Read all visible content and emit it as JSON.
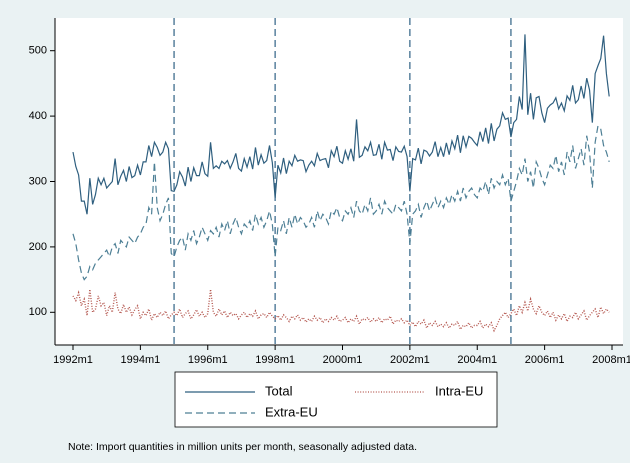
{
  "chart_data": {
    "type": "line",
    "note": "Note: Import quantities in million units per month, seasonally adjusted data.",
    "x": [
      "1992m1",
      "1992m2",
      "1992m3",
      "1992m4",
      "1992m5",
      "1992m6",
      "1992m7",
      "1992m8",
      "1992m9",
      "1992m10",
      "1992m11",
      "1992m12",
      "1993m1",
      "1993m2",
      "1993m3",
      "1993m4",
      "1993m5",
      "1993m6",
      "1993m7",
      "1993m8",
      "1993m9",
      "1993m10",
      "1993m11",
      "1993m12",
      "1994m1",
      "1994m2",
      "1994m3",
      "1994m4",
      "1994m5",
      "1994m6",
      "1994m7",
      "1994m8",
      "1994m9",
      "1994m10",
      "1994m11",
      "1994m12",
      "1995m1",
      "1995m2",
      "1995m3",
      "1995m4",
      "1995m5",
      "1995m6",
      "1995m7",
      "1995m8",
      "1995m9",
      "1995m10",
      "1995m11",
      "1995m12",
      "1996m1",
      "1996m2",
      "1996m3",
      "1996m4",
      "1996m5",
      "1996m6",
      "1996m7",
      "1996m8",
      "1996m9",
      "1996m10",
      "1996m11",
      "1996m12",
      "1997m1",
      "1997m2",
      "1997m3",
      "1997m4",
      "1997m5",
      "1997m6",
      "1997m7",
      "1997m8",
      "1997m9",
      "1997m10",
      "1997m11",
      "1997m12",
      "1998m1",
      "1998m2",
      "1998m3",
      "1998m4",
      "1998m5",
      "1998m6",
      "1998m7",
      "1998m8",
      "1998m9",
      "1998m10",
      "1998m11",
      "1998m12",
      "1999m1",
      "1999m2",
      "1999m3",
      "1999m4",
      "1999m5",
      "1999m6",
      "1999m7",
      "1999m8",
      "1999m9",
      "1999m10",
      "1999m11",
      "1999m12",
      "2000m1",
      "2000m2",
      "2000m3",
      "2000m4",
      "2000m5",
      "2000m6",
      "2000m7",
      "2000m8",
      "2000m9",
      "2000m10",
      "2000m11",
      "2000m12",
      "2001m1",
      "2001m2",
      "2001m3",
      "2001m4",
      "2001m5",
      "2001m6",
      "2001m7",
      "2001m8",
      "2001m9",
      "2001m10",
      "2001m11",
      "2001m12",
      "2002m1",
      "2002m2",
      "2002m3",
      "2002m4",
      "2002m5",
      "2002m6",
      "2002m7",
      "2002m8",
      "2002m9",
      "2002m10",
      "2002m11",
      "2002m12",
      "2003m1",
      "2003m2",
      "2003m3",
      "2003m4",
      "2003m5",
      "2003m6",
      "2003m7",
      "2003m8",
      "2003m9",
      "2003m10",
      "2003m11",
      "2003m12",
      "2004m1",
      "2004m2",
      "2004m3",
      "2004m4",
      "2004m5",
      "2004m6",
      "2004m7",
      "2004m8",
      "2004m9",
      "2004m10",
      "2004m11",
      "2004m12",
      "2005m1",
      "2005m2",
      "2005m3",
      "2005m4",
      "2005m5",
      "2005m6",
      "2005m7",
      "2005m8",
      "2005m9",
      "2005m10",
      "2005m11",
      "2005m12",
      "2006m1",
      "2006m2",
      "2006m3",
      "2006m4",
      "2006m5",
      "2006m6",
      "2006m7",
      "2006m8",
      "2006m9",
      "2006m10",
      "2006m11",
      "2006m12",
      "2007m1",
      "2007m2",
      "2007m3",
      "2007m4",
      "2007m5",
      "2007m6",
      "2007m7",
      "2007m8",
      "2007m9",
      "2007m10",
      "2007m11",
      "2007m12"
    ],
    "series": [
      {
        "name": "Total",
        "color": "#2f5f7f",
        "style": "solid",
        "values": [
          345,
          323,
          310,
          270,
          270,
          250,
          305,
          265,
          280,
          305,
          295,
          305,
          290,
          295,
          300,
          335,
          295,
          308,
          317,
          300,
          323,
          306,
          309,
          325,
          310,
          330,
          330,
          355,
          338,
          360,
          352,
          340,
          345,
          360,
          350,
          286,
          285,
          295,
          315,
          307,
          293,
          322,
          300,
          321,
          309,
          309,
          330,
          312,
          308,
          360,
          320,
          324,
          320,
          331,
          327,
          332,
          320,
          330,
          343,
          320,
          316,
          335,
          322,
          338,
          319,
          352,
          325,
          341,
          328,
          332,
          355,
          329,
          275,
          325,
          313,
          336,
          312,
          331,
          324,
          340,
          331,
          333,
          332,
          315,
          325,
          331,
          324,
          343,
          332,
          334,
          335,
          321,
          347,
          338,
          354,
          331,
          328,
          347,
          334,
          350,
          331,
          395,
          337,
          340,
          353,
          347,
          360,
          340,
          341,
          357,
          334,
          360,
          348,
          349,
          332,
          353,
          346,
          345,
          354,
          338,
          285,
          335,
          333,
          351,
          327,
          348,
          346,
          339,
          345,
          361,
          338,
          352,
          338,
          359,
          341,
          362,
          350,
          371,
          344,
          370,
          353,
          369,
          366,
          360,
          355,
          376,
          361,
          382,
          358,
          389,
          362,
          380,
          385,
          405,
          395,
          397,
          368,
          390,
          395,
          430,
          410,
          525,
          402,
          435,
          395,
          428,
          430,
          405,
          390,
          412,
          417,
          420,
          428,
          411,
          420,
          408,
          431,
          424,
          447,
          420,
          425,
          446,
          427,
          458,
          440,
          390,
          465,
          477,
          488,
          523,
          465,
          430
        ]
      },
      {
        "name": "Intra-EU",
        "color": "#b4574f",
        "style": "dotted",
        "values": [
          125,
          118,
          130,
          110,
          120,
          95,
          135,
          100,
          105,
          125,
          110,
          115,
          95,
          110,
          100,
          130,
          105,
          98,
          112,
          100,
          108,
          96,
          104,
          110,
          90,
          100,
          95,
          105,
          88,
          98,
          92,
          100,
          95,
          102,
          90,
          96,
          100,
          95,
          105,
          92,
          98,
          102,
          90,
          96,
          104,
          94,
          100,
          92,
          98,
          135,
          100,
          94,
          105,
          96,
          102,
          92,
          100,
          95,
          98,
          90,
          96,
          100,
          92,
          98,
          94,
          102,
          90,
          96,
          98,
          92,
          100,
          94,
          90,
          95,
          88,
          96,
          92,
          86,
          94,
          90,
          96,
          88,
          92,
          85,
          90,
          86,
          94,
          88,
          92,
          84,
          90,
          86,
          92,
          88,
          94,
          86,
          88,
          92,
          84,
          90,
          86,
          94,
          82,
          90,
          88,
          92,
          85,
          90,
          86,
          92,
          84,
          90,
          88,
          94,
          82,
          88,
          86,
          90,
          84,
          88,
          80,
          85,
          78,
          86,
          82,
          88,
          76,
          84,
          80,
          86,
          78,
          82,
          78,
          84,
          76,
          82,
          80,
          86,
          74,
          80,
          78,
          84,
          76,
          80,
          80,
          86,
          76,
          82,
          78,
          84,
          72,
          80,
          90,
          95,
          100,
          92,
          98,
          105,
          95,
          110,
          100,
          115,
          102,
          120,
          105,
          98,
          110,
          100,
          95,
          102,
          92,
          100,
          88,
          96,
          90,
          98,
          86,
          94,
          92,
          100,
          90,
          96,
          102,
          88,
          95,
          100,
          105,
          92,
          108,
          98,
          105,
          100
        ]
      },
      {
        "name": "Extra-EU",
        "color": "#4d7f95",
        "style": "dashed",
        "values": [
          220,
          205,
          180,
          160,
          150,
          155,
          170,
          165,
          175,
          180,
          185,
          190,
          195,
          185,
          200,
          205,
          190,
          210,
          205,
          200,
          215,
          210,
          205,
          215,
          220,
          230,
          235,
          260,
          250,
          330,
          260,
          240,
          250,
          265,
          275,
          190,
          185,
          200,
          210,
          215,
          195,
          220,
          210,
          225,
          205,
          215,
          230,
          220,
          210,
          225,
          220,
          230,
          215,
          235,
          225,
          240,
          220,
          235,
          245,
          230,
          220,
          235,
          230,
          240,
          225,
          250,
          235,
          245,
          230,
          240,
          255,
          235,
          185,
          230,
          225,
          240,
          220,
          245,
          230,
          250,
          235,
          245,
          240,
          230,
          235,
          245,
          230,
          255,
          240,
          250,
          245,
          235,
          255,
          250,
          260,
          245,
          240,
          255,
          250,
          260,
          245,
          270,
          255,
          250,
          265,
          255,
          275,
          250,
          255,
          265,
          250,
          270,
          260,
          255,
          250,
          265,
          260,
          255,
          270,
          250,
          205,
          250,
          255,
          265,
          245,
          260,
          270,
          255,
          265,
          275,
          260,
          270,
          260,
          275,
          265,
          280,
          270,
          285,
          270,
          290,
          275,
          285,
          290,
          280,
          275,
          290,
          285,
          300,
          280,
          305,
          290,
          300,
          295,
          310,
          295,
          305,
          270,
          285,
          300,
          320,
          310,
          335,
          300,
          315,
          290,
          330,
          320,
          305,
          295,
          310,
          325,
          320,
          340,
          315,
          330,
          310,
          345,
          330,
          355,
          320,
          335,
          350,
          325,
          370,
          345,
          290,
          360,
          385,
          380,
          355,
          345,
          330
        ]
      }
    ],
    "vlines": [
      "1995m1",
      "1998m1",
      "2002m1",
      "2005m1"
    ],
    "xlim": [
      "1992m1",
      "2008m1"
    ],
    "xticks": [
      "1992m1",
      "1994m1",
      "1996m1",
      "1998m1",
      "2000m1",
      "2002m1",
      "2004m1",
      "2006m1",
      "2008m1"
    ],
    "ylim": [
      50,
      550
    ],
    "yticks": [
      100,
      200,
      300,
      400,
      500
    ],
    "legend": "bottom"
  }
}
